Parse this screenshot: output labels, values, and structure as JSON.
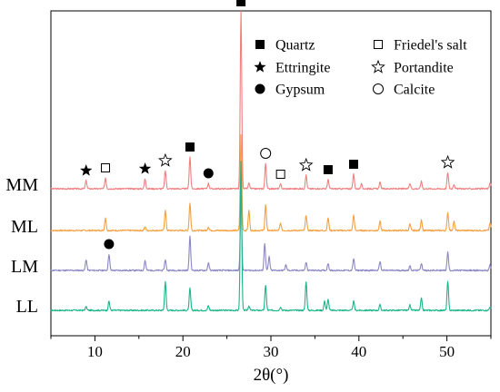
{
  "chart_data": {
    "type": "line",
    "title": "",
    "xlabel": "2θ(°)",
    "ylabel": "",
    "xlim": [
      5,
      55
    ],
    "x_ticks": [
      10,
      20,
      30,
      40,
      50
    ],
    "grid": false,
    "legend": {
      "placement": "top-right",
      "entries": [
        {
          "name": "Quartz",
          "marker": "square-filled"
        },
        {
          "name": "Friedel's salt",
          "marker": "square-open"
        },
        {
          "name": "Ettringite",
          "marker": "star-filled"
        },
        {
          "name": "Portandite",
          "marker": "star-open"
        },
        {
          "name": "Gypsum",
          "marker": "circle-filled"
        },
        {
          "name": "Calcite",
          "marker": "circle-open"
        }
      ]
    },
    "series": [
      {
        "name": "MM",
        "color": "#F07F80",
        "noise_seed": 3,
        "peaks": [
          [
            9.0,
            9
          ],
          [
            11.2,
            12
          ],
          [
            15.7,
            11
          ],
          [
            18.0,
            20
          ],
          [
            20.8,
            35
          ],
          [
            22.9,
            6
          ],
          [
            26.6,
            195
          ],
          [
            27.5,
            6
          ],
          [
            29.4,
            28
          ],
          [
            31.1,
            5
          ],
          [
            34.0,
            15
          ],
          [
            36.5,
            10
          ],
          [
            39.4,
            16
          ],
          [
            40.3,
            5
          ],
          [
            42.4,
            7
          ],
          [
            45.8,
            6
          ],
          [
            47.1,
            8
          ],
          [
            50.1,
            18
          ],
          [
            50.8,
            5
          ],
          [
            54.9,
            7
          ]
        ]
      },
      {
        "name": "ML",
        "color": "#F4A040",
        "noise_seed": 7,
        "peaks": [
          [
            11.2,
            14
          ],
          [
            15.7,
            4
          ],
          [
            18.0,
            22
          ],
          [
            20.8,
            30
          ],
          [
            22.9,
            4
          ],
          [
            26.6,
            105
          ],
          [
            27.5,
            22
          ],
          [
            29.4,
            28
          ],
          [
            31.1,
            8
          ],
          [
            34.0,
            17
          ],
          [
            36.5,
            14
          ],
          [
            39.4,
            17
          ],
          [
            42.4,
            10
          ],
          [
            45.8,
            7
          ],
          [
            47.1,
            12
          ],
          [
            50.1,
            20
          ],
          [
            50.8,
            10
          ],
          [
            54.9,
            8
          ]
        ]
      },
      {
        "name": "LM",
        "color": "#8B86C4",
        "noise_seed": 11,
        "peaks": [
          [
            9.0,
            12
          ],
          [
            11.6,
            18
          ],
          [
            15.7,
            11
          ],
          [
            18.0,
            12
          ],
          [
            20.8,
            38
          ],
          [
            22.9,
            8
          ],
          [
            26.6,
            82
          ],
          [
            29.3,
            30
          ],
          [
            29.8,
            15
          ],
          [
            31.7,
            6
          ],
          [
            34.0,
            9
          ],
          [
            36.5,
            8
          ],
          [
            39.4,
            13
          ],
          [
            42.4,
            10
          ],
          [
            45.8,
            5
          ],
          [
            47.1,
            8
          ],
          [
            50.1,
            20
          ],
          [
            54.9,
            6
          ]
        ]
      },
      {
        "name": "LL",
        "color": "#1CB48A",
        "noise_seed": 17,
        "peaks": [
          [
            9.0,
            4
          ],
          [
            11.6,
            10
          ],
          [
            18.0,
            32
          ],
          [
            20.8,
            24
          ],
          [
            22.9,
            5
          ],
          [
            26.6,
            165
          ],
          [
            27.5,
            5
          ],
          [
            29.4,
            28
          ],
          [
            31.1,
            4
          ],
          [
            34.0,
            32
          ],
          [
            36.1,
            10
          ],
          [
            36.5,
            12
          ],
          [
            39.4,
            10
          ],
          [
            42.4,
            6
          ],
          [
            45.8,
            6
          ],
          [
            47.1,
            13
          ],
          [
            50.1,
            32
          ],
          [
            54.9,
            4
          ]
        ]
      }
    ],
    "phase_markers": [
      {
        "phase": "Quartz",
        "marker": "square-filled",
        "x": 26.6,
        "series": "MM"
      },
      {
        "phase": "Quartz",
        "marker": "square-filled",
        "x": 20.8,
        "series": "MM"
      },
      {
        "phase": "Quartz",
        "marker": "square-filled",
        "x": 36.5,
        "series": "MM"
      },
      {
        "phase": "Quartz",
        "marker": "square-filled",
        "x": 39.4,
        "series": "MM"
      },
      {
        "phase": "Ettringite",
        "marker": "star-filled",
        "x": 9.0,
        "series": "MM"
      },
      {
        "phase": "Ettringite",
        "marker": "star-filled",
        "x": 15.7,
        "series": "MM"
      },
      {
        "phase": "Friedel's salt",
        "marker": "square-open",
        "x": 11.2,
        "series": "MM"
      },
      {
        "phase": "Friedel's salt",
        "marker": "square-open",
        "x": 31.1,
        "series": "MM"
      },
      {
        "phase": "Portandite",
        "marker": "star-open",
        "x": 18.0,
        "series": "MM"
      },
      {
        "phase": "Portandite",
        "marker": "star-open",
        "x": 34.0,
        "series": "MM"
      },
      {
        "phase": "Portandite",
        "marker": "star-open",
        "x": 50.1,
        "series": "MM"
      },
      {
        "phase": "Gypsum",
        "marker": "circle-filled",
        "x": 22.9,
        "series": "MM"
      },
      {
        "phase": "Gypsum",
        "marker": "circle-filled",
        "x": 11.6,
        "series": "LM"
      },
      {
        "phase": "Calcite",
        "marker": "circle-open",
        "x": 29.4,
        "series": "MM"
      }
    ]
  }
}
